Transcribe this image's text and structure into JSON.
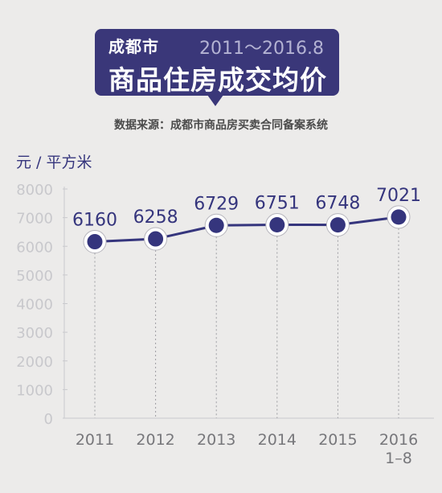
{
  "header": {
    "city": "成都市",
    "range": "2011～2016.8",
    "title": "商品住房成交均价"
  },
  "source": "数据来源：成都市商品房买卖合同备案系统",
  "unit": "元 / 平方米",
  "colors": {
    "accent": "#3a3779",
    "line": "#35357d",
    "axis_text": "#c8c8cc",
    "x_text": "#77777b",
    "background": "#ecebea"
  },
  "chart_data": {
    "type": "line",
    "categories": [
      "2011",
      "2012",
      "2013",
      "2014",
      "2015",
      "2016\n1–8"
    ],
    "values": [
      6160,
      6258,
      6729,
      6751,
      6748,
      7021
    ],
    "value_labels": [
      "6160",
      "6258",
      "6729",
      "6751",
      "6748",
      "7021"
    ],
    "yticks": [
      "0",
      "1000",
      "2000",
      "3000",
      "4000",
      "5000",
      "6000",
      "7000",
      "8000"
    ],
    "ylabel": "元 / 平方米",
    "ylim": [
      0,
      8000
    ],
    "grid": "vertical-dashed",
    "legend": "none"
  }
}
